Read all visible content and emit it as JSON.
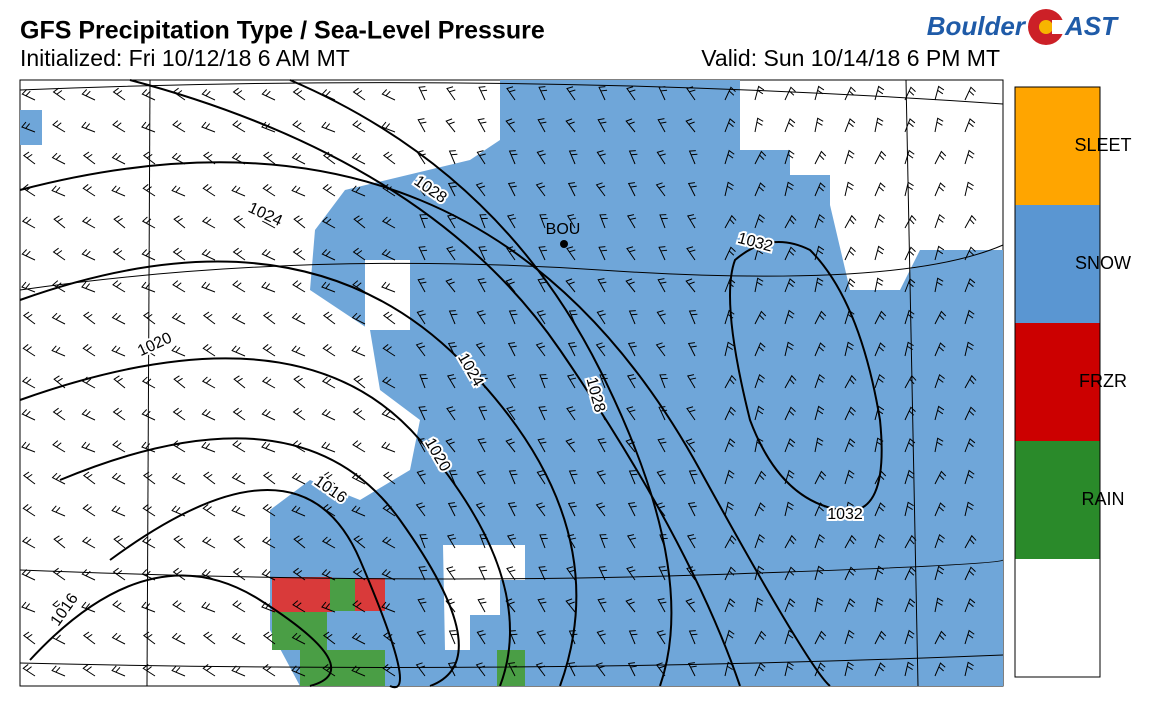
{
  "header": {
    "title": "GFS Precipitation Type / Sea-Level Pressure",
    "initialized": "Initialized: Fri 10/12/18 6 AM MT",
    "valid": "Valid: Sun 10/14/18 6 PM MT"
  },
  "logo": {
    "left": "Boulder",
    "right": "AST"
  },
  "legend": [
    "SLEET",
    "SNOW",
    "FRZR",
    "RAIN"
  ],
  "map": {
    "station": "BOU",
    "isobar_labels": [
      "1028",
      "1024",
      "1032",
      "1020",
      "1024",
      "1028",
      "1020",
      "1016",
      "1032",
      "1016"
    ]
  }
}
